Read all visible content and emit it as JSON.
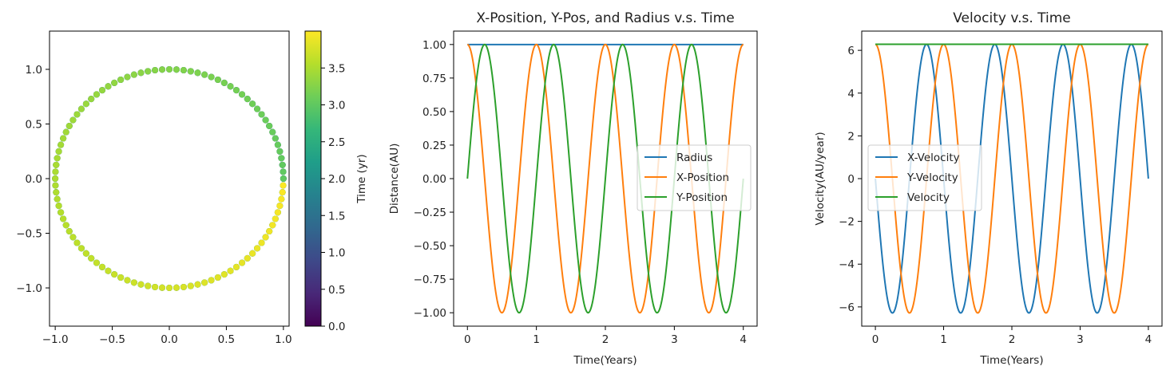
{
  "chart_data": [
    {
      "type": "scatter",
      "title": "",
      "xlabel": "",
      "ylabel": "",
      "xlim": [
        -1.05,
        1.05
      ],
      "ylim": [
        -1.35,
        1.35
      ],
      "xticks": [
        -1.0,
        -0.5,
        0.0,
        0.5,
        1.0
      ],
      "yticks": [
        -1.0,
        -0.5,
        0.0,
        0.5,
        1.0
      ],
      "orbit": {
        "radius": 1.0,
        "period_years": 1.0,
        "t_start": 0.0,
        "t_end": 4.0,
        "direction": "counterclockwise"
      },
      "colorbar": {
        "label": "Time (yr)",
        "range": [
          0.0,
          4.0
        ],
        "ticks": [
          0.0,
          0.5,
          1.0,
          1.5,
          2.0,
          2.5,
          3.0,
          3.5
        ],
        "colormap": "viridis",
        "stops": [
          "#440154",
          "#482878",
          "#3e4989",
          "#31688e",
          "#26828e",
          "#1f9e89",
          "#35b779",
          "#6ece58",
          "#b5de2b",
          "#fde725"
        ]
      }
    },
    {
      "type": "line",
      "title": "X-Position, Y-Pos, and Radius v.s. Time",
      "xlabel": "Time(Years)",
      "ylabel": "Distance(AU)",
      "xlim": [
        -0.2,
        4.2
      ],
      "ylim": [
        -1.1,
        1.1
      ],
      "xticks": [
        0,
        1,
        2,
        3,
        4
      ],
      "yticks": [
        -1.0,
        -0.75,
        -0.5,
        -0.25,
        0.0,
        0.25,
        0.5,
        0.75,
        1.0
      ],
      "legend": "center right",
      "series": [
        {
          "name": "Radius",
          "color": "#1f77b4",
          "amplitude": 1.0,
          "frequency": 1.0,
          "kind": "constant"
        },
        {
          "name": "X-Position",
          "color": "#ff7f0e",
          "amplitude": 1.0,
          "frequency": 1.0,
          "kind": "cos"
        },
        {
          "name": "Y-Position",
          "color": "#2ca02c",
          "amplitude": 1.0,
          "frequency": 1.0,
          "kind": "sin"
        }
      ],
      "x_range": [
        0,
        4
      ]
    },
    {
      "type": "line",
      "title": "Velocity v.s. Time",
      "xlabel": "Time(Years)",
      "ylabel": "Velocity(AU/year)",
      "xlim": [
        -0.2,
        4.2
      ],
      "ylim": [
        -6.9,
        6.9
      ],
      "xticks": [
        0,
        1,
        2,
        3,
        4
      ],
      "yticks": [
        -6,
        -4,
        -2,
        0,
        2,
        4,
        6
      ],
      "legend": "center left",
      "series": [
        {
          "name": "X-Velocity",
          "color": "#1f77b4",
          "amplitude": 6.283,
          "frequency": 1.0,
          "kind": "-sin"
        },
        {
          "name": "Y-Velocity",
          "color": "#ff7f0e",
          "amplitude": 6.283,
          "frequency": 1.0,
          "kind": "cos"
        },
        {
          "name": "Velocity",
          "color": "#2ca02c",
          "amplitude": 6.283,
          "frequency": 1.0,
          "kind": "constant"
        }
      ],
      "x_range": [
        0,
        4
      ]
    }
  ]
}
